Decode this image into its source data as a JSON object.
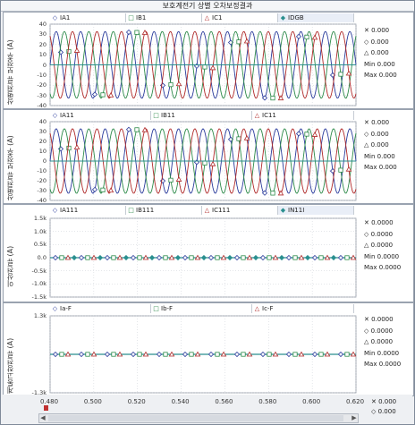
{
  "window": {
    "title": "보호계전기 상별 오차보정결과"
  },
  "panels": [
    {
      "id": "p1",
      "y_label": "상별전류 보정후 (A)",
      "y_ticks": [
        "40",
        "30",
        "20",
        "10",
        "0",
        "-10",
        "-20",
        "-30",
        "-40"
      ],
      "legend": [
        {
          "sym": "◇",
          "label": "IA1",
          "color": "#2a3b9c"
        },
        {
          "sym": "□",
          "label": "IB1",
          "color": "#2e8b4a"
        },
        {
          "sym": "△",
          "label": "IC1",
          "color": "#b02a2a"
        },
        {
          "sym": "◆",
          "label": "IDGB",
          "color": "#2a8f8f"
        }
      ],
      "readout": [
        "✕ 0.000",
        "◇ 0.000",
        "△ 0.000",
        "Min 0.000",
        "Max 0.000"
      ]
    },
    {
      "id": "p2",
      "y_label": "상별전류 보정후 (A)",
      "y_ticks": [
        "40",
        "30",
        "20",
        "10",
        "0",
        "-10",
        "-20",
        "-30",
        "-40"
      ],
      "legend": [
        {
          "sym": "◇",
          "label": "IA11",
          "color": "#2a3b9c"
        },
        {
          "sym": "□",
          "label": "IB11",
          "color": "#2e8b4a"
        },
        {
          "sym": "△",
          "label": "IC11",
          "color": "#b02a2a"
        }
      ],
      "readout": [
        "✕ 0.000",
        "◇ 0.000",
        "△ 0.000",
        "Min 0.000",
        "Max 0.000"
      ]
    },
    {
      "id": "p3",
      "y_label": "이상전류 (A)",
      "y_ticks": [
        "1.5k",
        "1.0k",
        "0.5k",
        "0.0",
        "-0.5k",
        "-1.0k",
        "-1.5k"
      ],
      "legend": [
        {
          "sym": "◇",
          "label": "IA111",
          "color": "#2a3b9c"
        },
        {
          "sym": "□",
          "label": "IB111",
          "color": "#2e8b4a"
        },
        {
          "sym": "△",
          "label": "IC111",
          "color": "#b02a2a"
        },
        {
          "sym": "◆",
          "label": "IN11I",
          "color": "#2a8f8f"
        }
      ],
      "readout": [
        "✕ 0.0000",
        "◇ 0.0000",
        "△ 0.0000",
        "Min 0.0000",
        "Max 0.0000"
      ]
    },
    {
      "id": "p4",
      "y_label": "계통고장전류 (A)",
      "y_ticks": [
        "1.3k",
        "-1.3k"
      ],
      "legend": [
        {
          "sym": "◇",
          "label": "Ia-F",
          "color": "#2a3b9c"
        },
        {
          "sym": "□",
          "label": "Ib-F",
          "color": "#2e8b4a"
        },
        {
          "sym": "△",
          "label": "Ic-F",
          "color": "#b02a2a"
        }
      ],
      "readout": [
        "✕ 0.0000",
        "◇ 0.0000",
        "△ 0.0000",
        "Min 0.0000",
        "Max 0.0000"
      ]
    }
  ],
  "x_axis": {
    "ticks": [
      "0.480",
      "0.500",
      "0.520",
      "0.540",
      "0.560",
      "0.580",
      "0.600",
      "0.620"
    ]
  },
  "bottom_readout": [
    "✕ 0.000",
    "◇ 0.000"
  ],
  "colors": {
    "phase_a": "#2a3b9c",
    "phase_b": "#2e8b4a",
    "phase_c": "#b02a2a",
    "neutral": "#2a8f8f",
    "grid": "#c9ced6"
  }
}
